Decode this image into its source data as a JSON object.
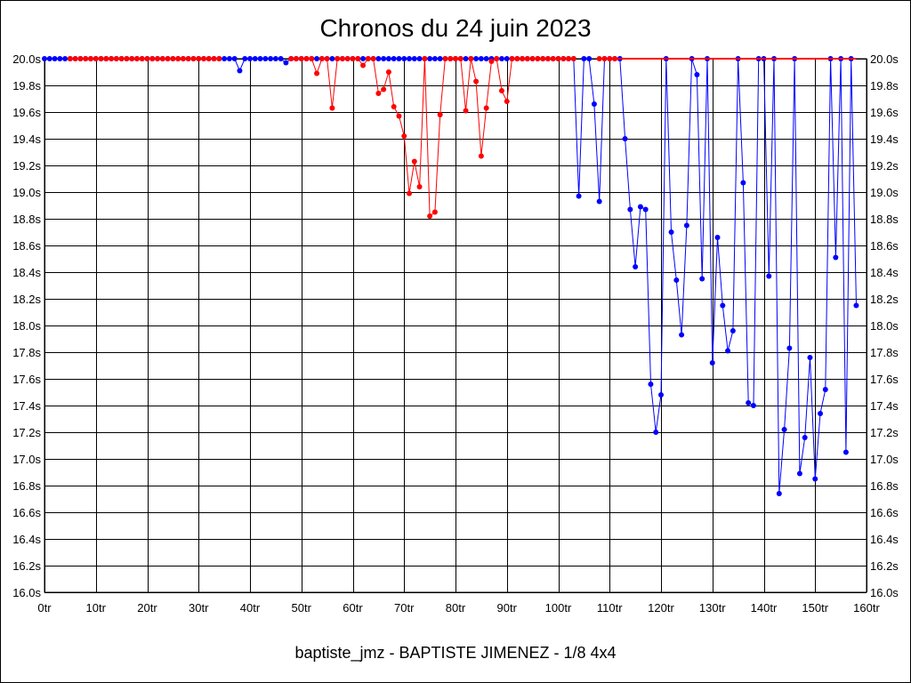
{
  "colors": {
    "series_a": "#0000ff",
    "series_b": "#ff0000",
    "grid": "#000000"
  },
  "chart_data": {
    "type": "line",
    "title": "Chronos du 24 juin 2023",
    "caption": "baptiste_jmz - BAPTISTE JIMENEZ - 1/8 4x4",
    "xlabel": "",
    "ylabel": "",
    "xlim": [
      0,
      160
    ],
    "ylim": [
      16.0,
      20.0
    ],
    "x_ticks": [
      0,
      10,
      20,
      30,
      40,
      50,
      60,
      70,
      80,
      90,
      100,
      110,
      120,
      130,
      140,
      150,
      160
    ],
    "x_tick_labels": [
      "0tr",
      "10tr",
      "20tr",
      "30tr",
      "40tr",
      "50tr",
      "60tr",
      "70tr",
      "80tr",
      "90tr",
      "100tr",
      "110tr",
      "120tr",
      "130tr",
      "140tr",
      "150tr",
      "160tr"
    ],
    "y_ticks": [
      16.0,
      16.2,
      16.4,
      16.6,
      16.8,
      17.0,
      17.2,
      17.4,
      17.6,
      17.8,
      18.0,
      18.2,
      18.4,
      18.6,
      18.8,
      19.0,
      19.2,
      19.4,
      19.6,
      19.8,
      20.0
    ],
    "y_tick_labels": [
      "16.0s",
      "16.2s",
      "16.4s",
      "16.6s",
      "16.8s",
      "17.0s",
      "17.2s",
      "17.4s",
      "17.6s",
      "17.8s",
      "18.0s",
      "18.2s",
      "18.4s",
      "18.6s",
      "18.8s",
      "19.0s",
      "19.2s",
      "19.4s",
      "19.6s",
      "19.8s",
      "20.0s"
    ],
    "series": [
      {
        "name": "blue",
        "color": "#0000ff",
        "points": [
          [
            0,
            20
          ],
          [
            1,
            20
          ],
          [
            2,
            20
          ],
          [
            3,
            20
          ],
          [
            4,
            20
          ],
          [
            5,
            20
          ],
          [
            6,
            20
          ],
          [
            7,
            20
          ],
          [
            8,
            20
          ],
          [
            9,
            20
          ],
          [
            10,
            20
          ],
          [
            11,
            20
          ],
          [
            12,
            20
          ],
          [
            13,
            20
          ],
          [
            14,
            20
          ],
          [
            15,
            20
          ],
          [
            16,
            20
          ],
          [
            17,
            20
          ],
          [
            18,
            20
          ],
          [
            19,
            20
          ],
          [
            20,
            20
          ],
          [
            21,
            20
          ],
          [
            22,
            20
          ],
          [
            23,
            20
          ],
          [
            24,
            20
          ],
          [
            25,
            20
          ],
          [
            26,
            20
          ],
          [
            27,
            20
          ],
          [
            28,
            20
          ],
          [
            29,
            20
          ],
          [
            30,
            20
          ],
          [
            31,
            20
          ],
          [
            32,
            20
          ],
          [
            33,
            20
          ],
          [
            34,
            20
          ],
          [
            35,
            20
          ],
          [
            36,
            20
          ],
          [
            37,
            20
          ],
          [
            38,
            19.91
          ],
          [
            39,
            20
          ],
          [
            40,
            20
          ],
          [
            41,
            20
          ],
          [
            42,
            20
          ],
          [
            43,
            20
          ],
          [
            44,
            20
          ],
          [
            45,
            20
          ],
          [
            46,
            20
          ],
          [
            47,
            19.97
          ],
          [
            48,
            20
          ],
          [
            49,
            20
          ],
          [
            50,
            20
          ],
          [
            51,
            20
          ],
          [
            52,
            20
          ],
          [
            53,
            20
          ],
          [
            54,
            20
          ],
          [
            55,
            20
          ],
          [
            56,
            20
          ],
          [
            57,
            20
          ],
          [
            58,
            20
          ],
          [
            59,
            20
          ],
          [
            60,
            20
          ],
          [
            61,
            20
          ],
          [
            62,
            20
          ],
          [
            63,
            20
          ],
          [
            64,
            20
          ],
          [
            65,
            20
          ],
          [
            66,
            20
          ],
          [
            67,
            20
          ],
          [
            68,
            20
          ],
          [
            69,
            20
          ],
          [
            70,
            20
          ],
          [
            71,
            20
          ],
          [
            72,
            20
          ],
          [
            73,
            20
          ],
          [
            74,
            20
          ],
          [
            75,
            20
          ],
          [
            76,
            20
          ],
          [
            77,
            20
          ],
          [
            78,
            20
          ],
          [
            79,
            20
          ],
          [
            80,
            20
          ],
          [
            81,
            20
          ],
          [
            82,
            20
          ],
          [
            83,
            20
          ],
          [
            84,
            20
          ],
          [
            85,
            20
          ],
          [
            86,
            20
          ],
          [
            87,
            20
          ],
          [
            88,
            20
          ],
          [
            89,
            20
          ],
          [
            90,
            20
          ],
          [
            91,
            20
          ],
          [
            92,
            20
          ],
          [
            93,
            20
          ],
          [
            94,
            20
          ],
          [
            95,
            20
          ],
          [
            96,
            20
          ],
          [
            97,
            20
          ],
          [
            98,
            20
          ],
          [
            99,
            20
          ],
          [
            100,
            20
          ],
          [
            101,
            20
          ],
          [
            102,
            20
          ],
          [
            103,
            20
          ],
          [
            104,
            18.97
          ],
          [
            105,
            20
          ],
          [
            106,
            20
          ],
          [
            107,
            19.66
          ],
          [
            108,
            18.93
          ],
          [
            109,
            20
          ],
          [
            110,
            20
          ],
          [
            111,
            20
          ],
          [
            112,
            20
          ],
          [
            113,
            19.4
          ],
          [
            114,
            18.87
          ],
          [
            115,
            18.44
          ],
          [
            116,
            18.89
          ],
          [
            117,
            18.87
          ],
          [
            118,
            17.56
          ],
          [
            119,
            17.2
          ],
          [
            120,
            17.48
          ],
          [
            121,
            20
          ],
          [
            122,
            18.7
          ],
          [
            123,
            18.34
          ],
          [
            124,
            17.93
          ],
          [
            125,
            18.75
          ],
          [
            126,
            20
          ],
          [
            127,
            19.88
          ],
          [
            128,
            18.35
          ],
          [
            129,
            20
          ],
          [
            130,
            17.72
          ],
          [
            131,
            18.66
          ],
          [
            132,
            18.15
          ],
          [
            133,
            17.81
          ],
          [
            134,
            17.96
          ],
          [
            135,
            20
          ],
          [
            136,
            19.07
          ],
          [
            137,
            17.42
          ],
          [
            138,
            17.4
          ],
          [
            139,
            20
          ],
          [
            140,
            20
          ],
          [
            141,
            18.37
          ],
          [
            142,
            20
          ],
          [
            143,
            16.74
          ],
          [
            144,
            17.22
          ],
          [
            145,
            17.83
          ],
          [
            146,
            20
          ],
          [
            147,
            16.89
          ],
          [
            148,
            17.16
          ],
          [
            149,
            17.76
          ],
          [
            150,
            16.85
          ],
          [
            151,
            17.34
          ],
          [
            152,
            17.52
          ],
          [
            153,
            20
          ],
          [
            154,
            18.51
          ],
          [
            155,
            20
          ],
          [
            156,
            17.05
          ],
          [
            157,
            20
          ],
          [
            158,
            18.15
          ]
        ]
      },
      {
        "name": "red",
        "color": "#ff0000",
        "points": [
          [
            5,
            20
          ],
          [
            6,
            20
          ],
          [
            7,
            20
          ],
          [
            8,
            20
          ],
          [
            9,
            20
          ],
          [
            10,
            20
          ],
          [
            11,
            20
          ],
          [
            12,
            20
          ],
          [
            13,
            20
          ],
          [
            14,
            20
          ],
          [
            15,
            20
          ],
          [
            16,
            20
          ],
          [
            17,
            20
          ],
          [
            18,
            20
          ],
          [
            19,
            20
          ],
          [
            20,
            20
          ],
          [
            21,
            20
          ],
          [
            22,
            20
          ],
          [
            23,
            20
          ],
          [
            24,
            20
          ],
          [
            25,
            20
          ],
          [
            26,
            20
          ],
          [
            27,
            20
          ],
          [
            28,
            20
          ],
          [
            29,
            20
          ],
          [
            30,
            20
          ],
          [
            31,
            20
          ],
          [
            32,
            20
          ],
          [
            33,
            20
          ],
          [
            34,
            20
          ],
          [
            48,
            20
          ],
          [
            49,
            20
          ],
          [
            50,
            20
          ],
          [
            51,
            20
          ],
          [
            52,
            20
          ],
          [
            53,
            19.89
          ],
          [
            54,
            20
          ],
          [
            55,
            20
          ],
          [
            56,
            19.63
          ],
          [
            57,
            20
          ],
          [
            58,
            20
          ],
          [
            59,
            20
          ],
          [
            60,
            20
          ],
          [
            61,
            20
          ],
          [
            62,
            19.95
          ],
          [
            63,
            20
          ],
          [
            64,
            20
          ],
          [
            65,
            19.74
          ],
          [
            66,
            19.77
          ],
          [
            67,
            19.9
          ],
          [
            68,
            19.64
          ],
          [
            69,
            19.57
          ],
          [
            70,
            19.42
          ],
          [
            71,
            18.99
          ],
          [
            72,
            19.23
          ],
          [
            73,
            19.04
          ],
          [
            74,
            20
          ],
          [
            75,
            18.82
          ],
          [
            76,
            18.85
          ],
          [
            77,
            19.58
          ],
          [
            78,
            20
          ],
          [
            79,
            20
          ],
          [
            80,
            20
          ],
          [
            81,
            20
          ],
          [
            82,
            19.61
          ],
          [
            83,
            20
          ],
          [
            84,
            19.83
          ],
          [
            85,
            19.27
          ],
          [
            86,
            19.63
          ],
          [
            87,
            19.98
          ],
          [
            88,
            20
          ],
          [
            89,
            19.76
          ],
          [
            90,
            19.68
          ],
          [
            91,
            20
          ],
          [
            92,
            20
          ],
          [
            93,
            20
          ],
          [
            94,
            20
          ],
          [
            95,
            20
          ],
          [
            96,
            20
          ],
          [
            97,
            20
          ],
          [
            98,
            20
          ],
          [
            99,
            20
          ],
          [
            100,
            20
          ],
          [
            101,
            20
          ],
          [
            102,
            20
          ],
          [
            103,
            20
          ],
          [
            108,
            20
          ],
          [
            109,
            20
          ],
          [
            110,
            20
          ],
          [
            111,
            20
          ]
        ],
        "flat_line_to": 158
      }
    ]
  }
}
